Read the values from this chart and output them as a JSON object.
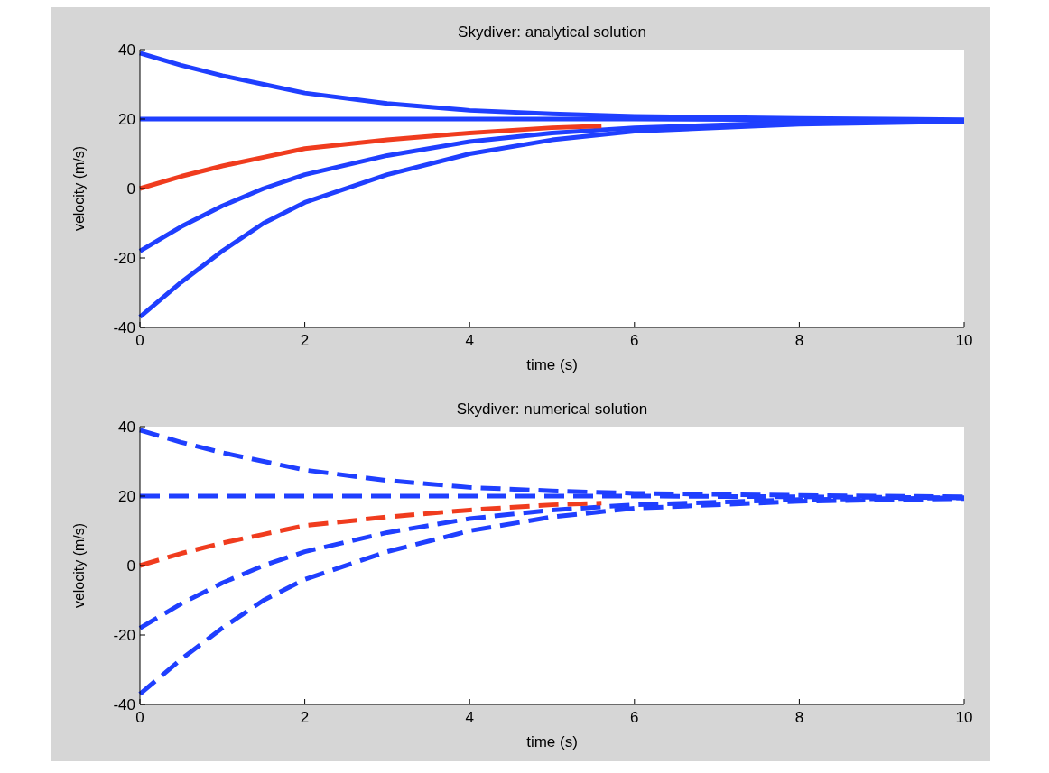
{
  "chart_data": [
    {
      "type": "line",
      "title": "Skydiver: analytical solution",
      "xlabel": "time (s)",
      "ylabel": "velocity (m/s)",
      "xlim": [
        0,
        10
      ],
      "ylim": [
        -40,
        40
      ],
      "xticks": [
        0,
        2,
        4,
        6,
        8,
        10
      ],
      "yticks": [
        -40,
        -20,
        0,
        20,
        40
      ],
      "line_style": "solid",
      "series": [
        {
          "color": "#1f3fff",
          "x": [
            0,
            0.5,
            1,
            1.5,
            2,
            3,
            4,
            5,
            6,
            8,
            10
          ],
          "values": [
            39,
            35.5,
            32.5,
            30,
            27.5,
            24.5,
            22.5,
            21.5,
            20.8,
            20.2,
            19.8
          ]
        },
        {
          "color": "#1f3fff",
          "x": [
            0,
            0.5,
            1,
            1.5,
            2,
            3,
            4,
            5,
            6,
            8,
            10
          ],
          "values": [
            20,
            20,
            20,
            20,
            20,
            20,
            20,
            20,
            20,
            19.8,
            19.5
          ]
        },
        {
          "color": "#1f3fff",
          "x": [
            0,
            0.5,
            1,
            1.5,
            2,
            3,
            4,
            5,
            6,
            8,
            10
          ],
          "values": [
            -18,
            -11,
            -5,
            0,
            4,
            9.5,
            13.5,
            16,
            17.5,
            19,
            19.5
          ]
        },
        {
          "color": "#1f3fff",
          "x": [
            0,
            0.5,
            1,
            1.5,
            2,
            3,
            4,
            5,
            6,
            8,
            10
          ],
          "values": [
            -37,
            -27,
            -18,
            -10,
            -4,
            4,
            10,
            14,
            16.5,
            18.5,
            19.3
          ]
        },
        {
          "color": "#f03c1e",
          "x": [
            0,
            0.5,
            1,
            1.5,
            2,
            3,
            4,
            5,
            5.6
          ],
          "values": [
            0,
            3.5,
            6.5,
            9,
            11.5,
            14,
            16,
            17.5,
            18
          ]
        }
      ]
    },
    {
      "type": "line",
      "title": "Skydiver: numerical solution",
      "xlabel": "time (s)",
      "ylabel": "velocity (m/s)",
      "xlim": [
        0,
        10
      ],
      "ylim": [
        -40,
        40
      ],
      "xticks": [
        0,
        2,
        4,
        6,
        8,
        10
      ],
      "yticks": [
        -40,
        -20,
        0,
        20,
        40
      ],
      "line_style": "dashed",
      "series": [
        {
          "color": "#1f3fff",
          "x": [
            0,
            0.5,
            1,
            1.5,
            2,
            3,
            4,
            5,
            6,
            8,
            10
          ],
          "values": [
            39,
            35.5,
            32.5,
            30,
            27.5,
            24.5,
            22.5,
            21.5,
            20.8,
            20.2,
            19.8
          ]
        },
        {
          "color": "#1f3fff",
          "x": [
            0,
            0.5,
            1,
            1.5,
            2,
            3,
            4,
            5,
            6,
            8,
            10
          ],
          "values": [
            20,
            20,
            20,
            20,
            20,
            20,
            20,
            20,
            20,
            19.8,
            19.5
          ]
        },
        {
          "color": "#1f3fff",
          "x": [
            0,
            0.5,
            1,
            1.5,
            2,
            3,
            4,
            5,
            6,
            8,
            10
          ],
          "values": [
            -18,
            -11,
            -5,
            0,
            4,
            9.5,
            13.5,
            16,
            17.5,
            19,
            19.5
          ]
        },
        {
          "color": "#1f3fff",
          "x": [
            0,
            0.5,
            1,
            1.5,
            2,
            3,
            4,
            5,
            6,
            8,
            10
          ],
          "values": [
            -37,
            -27,
            -18,
            -10,
            -4,
            4,
            10,
            14,
            16.5,
            18.5,
            19.3
          ]
        },
        {
          "color": "#f03c1e",
          "x": [
            0,
            0.5,
            1,
            1.5,
            2,
            3,
            4,
            5,
            5.6
          ],
          "values": [
            0,
            3.5,
            6.5,
            9,
            11.5,
            14,
            16,
            17.5,
            18
          ]
        }
      ]
    }
  ]
}
